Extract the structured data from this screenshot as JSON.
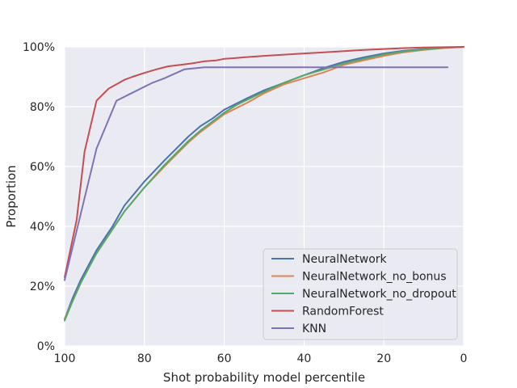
{
  "chart_data": {
    "type": "line",
    "xlabel": "Shot probability model percentile",
    "ylabel": "Proportion",
    "xlim": [
      100,
      0
    ],
    "ylim": [
      0,
      1
    ],
    "x_ticks": [
      100,
      80,
      60,
      40,
      20,
      0
    ],
    "y_ticks": [
      0,
      0.2,
      0.4,
      0.6,
      0.8,
      1.0
    ],
    "x_tick_labels": [
      "100",
      "80",
      "60",
      "40",
      "20",
      "0"
    ],
    "y_tick_labels": [
      "0%",
      "20%",
      "40%",
      "60%",
      "80%",
      "100%"
    ],
    "grid": true,
    "legend_position": "lower-right",
    "background_color": "#eaeaf2",
    "series": [
      {
        "name": "NeuralNetwork",
        "color": "#4c72b0",
        "x": [
          100,
          98,
          96,
          94,
          92,
          90,
          88,
          85,
          80,
          75,
          72,
          69,
          66,
          63,
          60,
          57,
          54,
          50,
          45,
          40,
          35,
          30,
          25,
          20,
          15,
          10,
          5,
          0
        ],
        "y": [
          0.09,
          0.16,
          0.22,
          0.27,
          0.32,
          0.36,
          0.4,
          0.47,
          0.55,
          0.62,
          0.66,
          0.7,
          0.735,
          0.76,
          0.79,
          0.81,
          0.83,
          0.855,
          0.88,
          0.905,
          0.93,
          0.95,
          0.965,
          0.978,
          0.987,
          0.993,
          0.997,
          1.0
        ]
      },
      {
        "name": "NeuralNetwork_no_bonus",
        "color": "#dd8452",
        "x": [
          100,
          98,
          96,
          94,
          92,
          90,
          88,
          85,
          80,
          75,
          72,
          69,
          66,
          63,
          60,
          57,
          54,
          50,
          45,
          40,
          35,
          30,
          25,
          20,
          15,
          10,
          5,
          0
        ],
        "y": [
          0.09,
          0.15,
          0.21,
          0.26,
          0.31,
          0.35,
          0.39,
          0.45,
          0.53,
          0.6,
          0.64,
          0.68,
          0.715,
          0.745,
          0.775,
          0.795,
          0.815,
          0.845,
          0.875,
          0.895,
          0.915,
          0.94,
          0.955,
          0.97,
          0.982,
          0.99,
          0.996,
          1.0
        ]
      },
      {
        "name": "NeuralNetwork_no_dropout",
        "color": "#55a868",
        "x": [
          100,
          98,
          96,
          94,
          92,
          90,
          88,
          85,
          80,
          75,
          72,
          69,
          66,
          63,
          60,
          57,
          54,
          50,
          45,
          40,
          35,
          30,
          25,
          20,
          15,
          10,
          5,
          0
        ],
        "y": [
          0.085,
          0.15,
          0.21,
          0.26,
          0.31,
          0.35,
          0.39,
          0.45,
          0.53,
          0.605,
          0.645,
          0.685,
          0.72,
          0.75,
          0.78,
          0.805,
          0.825,
          0.85,
          0.88,
          0.905,
          0.925,
          0.945,
          0.96,
          0.975,
          0.985,
          0.992,
          0.997,
          1.0
        ]
      },
      {
        "name": "RandomForest",
        "color": "#c44e52",
        "x": [
          100,
          97,
          95,
          92,
          89,
          87,
          85,
          83,
          80,
          77,
          74,
          71,
          68,
          65,
          62,
          60,
          58,
          55,
          50,
          45,
          40,
          35,
          30,
          25,
          20,
          15,
          10,
          5,
          0
        ],
        "y": [
          0.23,
          0.42,
          0.65,
          0.82,
          0.86,
          0.875,
          0.89,
          0.9,
          0.913,
          0.925,
          0.935,
          0.94,
          0.945,
          0.952,
          0.955,
          0.96,
          0.962,
          0.965,
          0.97,
          0.974,
          0.978,
          0.982,
          0.986,
          0.99,
          0.993,
          0.996,
          0.998,
          0.999,
          1.0
        ]
      },
      {
        "name": "KNN",
        "color": "#8172b3",
        "x": [
          100,
          96,
          92,
          87,
          84,
          78,
          75,
          70,
          65,
          60,
          40,
          20,
          4
        ],
        "y": [
          0.22,
          0.44,
          0.66,
          0.82,
          0.84,
          0.88,
          0.895,
          0.925,
          0.932,
          0.932,
          0.932,
          0.932,
          0.932
        ]
      }
    ]
  }
}
